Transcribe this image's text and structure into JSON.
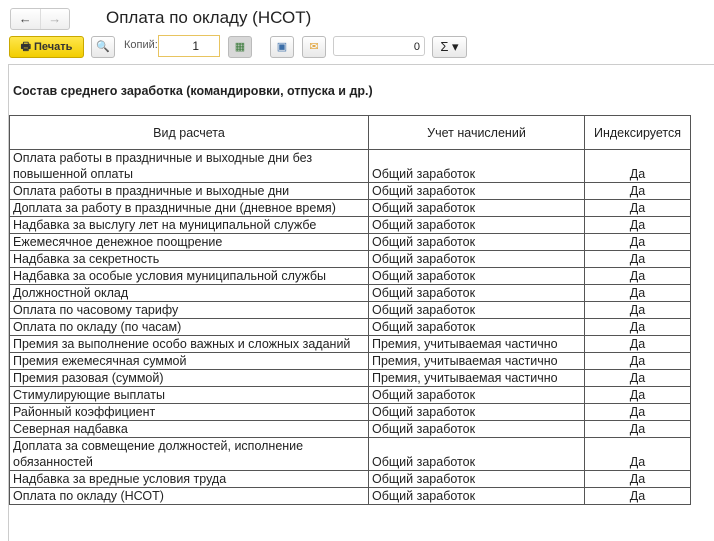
{
  "window": {
    "back": "←",
    "forward": "→",
    "title": "Оплата по окладу (НСОТ)"
  },
  "toolbar": {
    "print": "Печать",
    "copies_label": "Копий:",
    "copies_value": "1",
    "sum_value": "0",
    "sigma": "Σ ▾"
  },
  "report": {
    "section_title": "Состав среднего заработка (командировки, отпуска и др.)",
    "columns": [
      "Вид расчета",
      "Учет начислений",
      "Индексируется"
    ],
    "rows": [
      [
        "Оплата работы в праздничные и выходные дни без повышенной оплаты",
        "Общий заработок",
        "Да"
      ],
      [
        "Оплата работы в праздничные и выходные дни",
        "Общий заработок",
        "Да"
      ],
      [
        "Доплата за работу в праздничные дни (дневное время)",
        "Общий заработок",
        "Да"
      ],
      [
        "Надбавка за выслугу лет на муниципальной службе",
        "Общий заработок",
        "Да"
      ],
      [
        "Ежемесячное денежное поощрение",
        "Общий заработок",
        "Да"
      ],
      [
        "Надбавка за секретность",
        "Общий заработок",
        "Да"
      ],
      [
        "Надбавка за особые условия муниципальной службы",
        "Общий заработок",
        "Да"
      ],
      [
        "Должностной оклад",
        "Общий заработок",
        "Да"
      ],
      [
        "Оплата по часовому тарифу",
        "Общий заработок",
        "Да"
      ],
      [
        "Оплата по окладу (по часам)",
        "Общий заработок",
        "Да"
      ],
      [
        "Премия за выполнение особо важных и сложных заданий",
        "Премия, учитываемая частично",
        "Да"
      ],
      [
        "Премия ежемесячная суммой",
        "Премия, учитываемая частично",
        "Да"
      ],
      [
        "Премия разовая (суммой)",
        "Премия, учитываемая частично",
        "Да"
      ],
      [
        "Стимулирующие выплаты",
        "Общий заработок",
        "Да"
      ],
      [
        "Районный коэффициент",
        "Общий заработок",
        "Да"
      ],
      [
        "Северная надбавка",
        "Общий заработок",
        "Да"
      ],
      [
        "Доплата за совмещение должностей, исполнение обязанностей",
        "Общий заработок",
        "Да"
      ],
      [
        "Надбавка за вредные условия труда",
        "Общий заработок",
        "Да"
      ],
      [
        "Оплата по окладу (НСОТ)",
        "Общий заработок",
        "Да"
      ]
    ]
  }
}
